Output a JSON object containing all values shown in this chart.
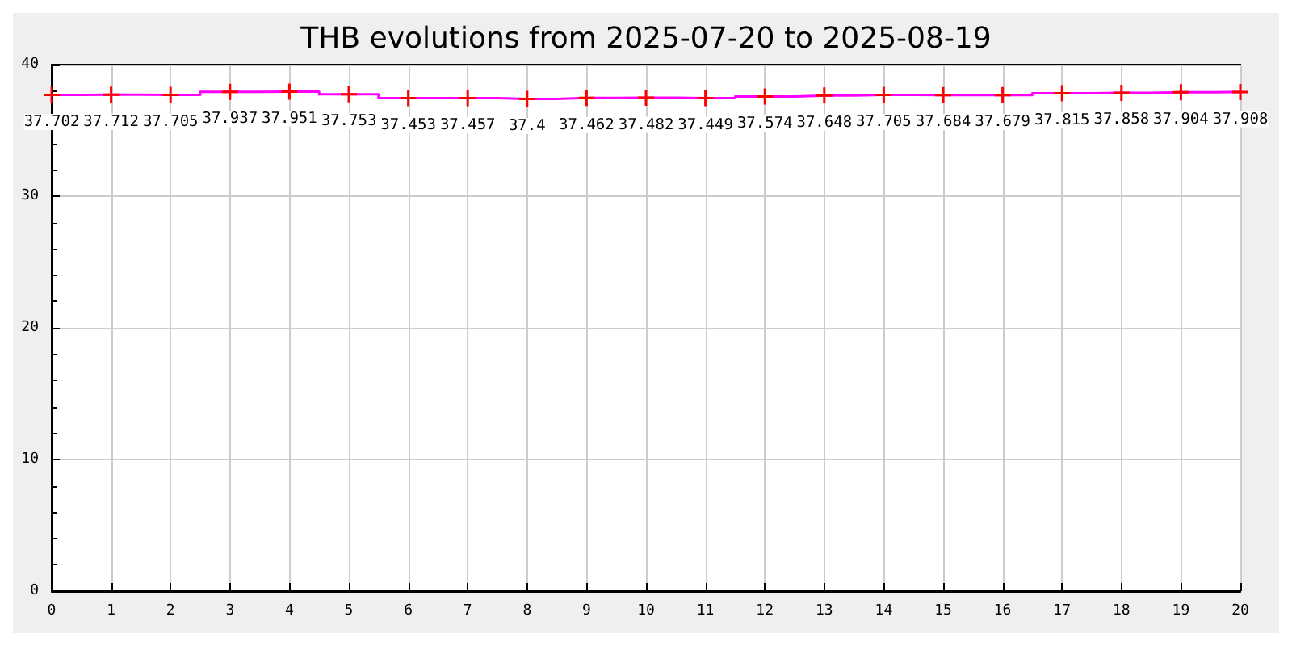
{
  "chart_data": {
    "type": "step",
    "title": "THB evolutions from 2025-07-20 to 2025-08-19",
    "x": [
      0,
      1,
      2,
      3,
      4,
      5,
      6,
      7,
      8,
      9,
      10,
      11,
      12,
      13,
      14,
      15,
      16,
      17,
      18,
      19,
      20
    ],
    "series": [
      {
        "color": "#ff00ff",
        "values": [
          37.702,
          37.712,
          37.705,
          37.937,
          37.951,
          37.753,
          37.453,
          37.457,
          37.4,
          37.462,
          37.482,
          37.449,
          37.574,
          37.648,
          37.705,
          37.684,
          37.679,
          37.815,
          37.858,
          37.904,
          37.908
        ]
      }
    ],
    "xlim": [
      0,
      20
    ],
    "xticks": [
      0,
      1,
      2,
      3,
      4,
      5,
      6,
      7,
      8,
      9,
      10,
      11,
      12,
      13,
      14,
      15,
      16,
      17,
      18,
      19,
      20
    ],
    "ylim": [
      0,
      40
    ],
    "yticks": [
      0,
      10,
      20,
      30,
      40
    ],
    "grid": true,
    "marker": "cross",
    "data_labels": true
  }
}
